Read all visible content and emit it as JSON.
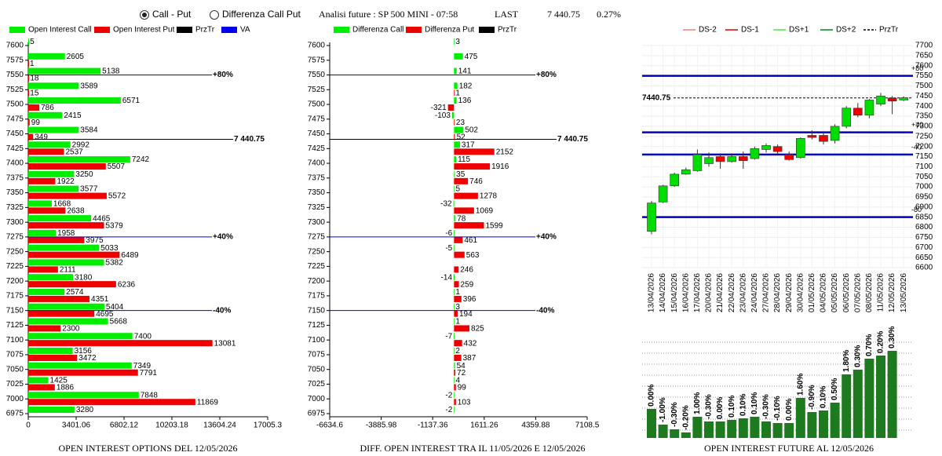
{
  "header": {
    "options": [
      "Call - Put",
      "Differenza Call Put"
    ],
    "selected": 0,
    "title": "Analisi future : SP 500 MINI - 07:58",
    "last_label": "LAST",
    "last_value": "7 440.75",
    "change": "0.27%"
  },
  "chart_data": [
    {
      "type": "hbar",
      "title": "OPEN INTEREST OPTIONS DEL 12/05/2026",
      "categories": [
        7600,
        7575,
        7550,
        7525,
        7500,
        7475,
        7450,
        7425,
        7400,
        7375,
        7350,
        7325,
        7300,
        7275,
        7250,
        7225,
        7200,
        7175,
        7150,
        7125,
        7100,
        7075,
        7050,
        7025,
        7000,
        6975
      ],
      "series": [
        {
          "name": "Open Interest Call",
          "color": "#00ee00",
          "values": [
            5,
            2605,
            5138,
            3589,
            6571,
            2415,
            3584,
            2992,
            7242,
            3250,
            3577,
            1668,
            4465,
            1958,
            5033,
            5382,
            3180,
            2574,
            5404,
            5668,
            7400,
            3156,
            7349,
            1425,
            7848,
            3280
          ]
        },
        {
          "name": "Open Interest Put",
          "color": "#ee0000",
          "values": [
            null,
            1,
            18,
            15,
            786,
            99,
            349,
            2537,
            5507,
            1922,
            5572,
            2638,
            5379,
            3975,
            6489,
            2111,
            6236,
            4351,
            4695,
            2300,
            13081,
            3472,
            7791,
            1886,
            11869,
            null
          ]
        }
      ],
      "legend_extra": [
        {
          "name": "PrzTr",
          "color": "#000000"
        },
        {
          "name": "VA",
          "color": "#0000ee"
        }
      ],
      "levels": [
        {
          "label": "+80%",
          "value": 7550,
          "color": "#0000ee"
        },
        {
          "label": "7 440.75",
          "value": 7440.75,
          "color": "#000000"
        },
        {
          "label": "+40%",
          "value": 7275,
          "color": "#0000ee"
        },
        {
          "label": "-40%",
          "value": 7150,
          "color": "#0000ee"
        }
      ],
      "xlim": [
        0,
        17005.3
      ],
      "xticks": [
        0,
        3401.06,
        6802.12,
        10203.18,
        13604.24,
        17005.3
      ]
    },
    {
      "type": "hbar",
      "title": "DIFF. OPEN INTEREST TRA IL 11/05/2026 E 12/05/2026",
      "categories": [
        7600,
        7575,
        7550,
        7525,
        7500,
        7475,
        7450,
        7425,
        7400,
        7375,
        7350,
        7325,
        7300,
        7275,
        7250,
        7225,
        7200,
        7175,
        7150,
        7125,
        7100,
        7075,
        7050,
        7025,
        7000,
        6975
      ],
      "series": [
        {
          "name": "Differenza Call",
          "color": "#00ee00",
          "values": [
            3,
            475,
            141,
            182,
            136,
            -103,
            502,
            317,
            115,
            35,
            5,
            -32,
            78,
            -6,
            -5,
            null,
            -14,
            1,
            3,
            1,
            -7,
            2,
            54,
            4,
            -2,
            -2
          ]
        },
        {
          "name": "Differenza Put",
          "color": "#ee0000",
          "values": [
            null,
            null,
            null,
            1,
            -321,
            23,
            52,
            2152,
            1916,
            746,
            1278,
            1069,
            1599,
            461,
            563,
            246,
            259,
            396,
            194,
            825,
            432,
            387,
            72,
            99,
            103,
            null
          ]
        }
      ],
      "legend_extra": [
        {
          "name": "PrzTr",
          "color": "#000000"
        }
      ],
      "levels": [
        {
          "label": "+80%",
          "value": 7550,
          "color": "#0000ee"
        },
        {
          "label": "7 440.75",
          "value": 7440.75,
          "color": "#000000"
        },
        {
          "label": "+40%",
          "value": 7275,
          "color": "#0000ee"
        },
        {
          "label": "-40%",
          "value": 7150,
          "color": "#0000ee"
        }
      ],
      "xlim": [
        -6634.6,
        7108.5
      ],
      "xticks": [
        -6634.6,
        -3885.98,
        -1137.36,
        1611.26,
        4359.88,
        7108.5
      ]
    },
    {
      "type": "candlestick",
      "title": "OPEN INTEREST FUTURE AL 12/05/2026",
      "legend": [
        {
          "name": "DS-2",
          "color": "#f08070",
          "dash": false
        },
        {
          "name": "DS-1",
          "color": "#e00000",
          "dash": false
        },
        {
          "name": "DS+1",
          "color": "#44ee44",
          "dash": false
        },
        {
          "name": "DS+2",
          "color": "#008800",
          "dash": false
        },
        {
          "name": "PrzTr",
          "color": "#000000",
          "dash": true
        }
      ],
      "categories": [
        "13/04/2026",
        "14/04/2026",
        "15/04/2026",
        "16/04/2026",
        "17/04/2026",
        "20/04/2026",
        "21/04/2026",
        "22/04/2026",
        "23/04/2026",
        "24/04/2026",
        "27/04/2026",
        "28/04/2026",
        "29/04/2026",
        "30/04/2026",
        "01/05/2026",
        "04/05/2026",
        "05/05/2026",
        "06/05/2026",
        "07/05/2026",
        "08/05/2026",
        "11/05/2026",
        "12/05/2026",
        "13/05/2026"
      ],
      "open": [
        6780,
        6925,
        7005,
        7063,
        7080,
        7115,
        7150,
        7125,
        7150,
        7140,
        7185,
        7200,
        7160,
        7145,
        7255,
        7255,
        7230,
        7300,
        7390,
        7355,
        7410,
        7440,
        7430
      ],
      "high": [
        6930,
        7010,
        7070,
        7095,
        7185,
        7170,
        7165,
        7165,
        7175,
        7200,
        7215,
        7210,
        7175,
        7245,
        7280,
        7270,
        7310,
        7400,
        7415,
        7435,
        7465,
        7450,
        7448
      ],
      "low": [
        6765,
        6920,
        7000,
        7060,
        7075,
        7100,
        7090,
        7120,
        7090,
        7135,
        7170,
        7160,
        7130,
        7140,
        7235,
        7210,
        7215,
        7290,
        7345,
        7340,
        7400,
        7360,
        7425
      ],
      "close": [
        6920,
        7005,
        7063,
        7085,
        7160,
        7145,
        7125,
        7150,
        7130,
        7190,
        7205,
        7175,
        7135,
        7240,
        7245,
        7225,
        7300,
        7390,
        7355,
        7430,
        7450,
        7425,
        7440.75
      ],
      "up_color": "#00dd00",
      "down_color": "#ee0000",
      "levels": [
        {
          "label": "+80",
          "value": 7550,
          "color": "#0000bb"
        },
        {
          "label": "+40",
          "value": 7270,
          "color": "#0000bb"
        },
        {
          "label": "-40",
          "value": 7160,
          "color": "#0000bb"
        },
        {
          "label": "-80",
          "value": 6850,
          "color": "#0000bb"
        }
      ],
      "price": 7440.75,
      "ylim": [
        6600,
        7700
      ],
      "yticks": [
        6600,
        6650,
        6700,
        6750,
        6800,
        6850,
        6900,
        6950,
        7000,
        7050,
        7100,
        7150,
        7200,
        7250,
        7300,
        7350,
        7400,
        7450,
        7500,
        7550,
        7600,
        7650,
        7700
      ]
    },
    {
      "type": "cumbar",
      "color": "#1e7a1e",
      "values": [
        0,
        -1,
        -0.3,
        -0.2,
        1,
        -0.3,
        0,
        0.1,
        0.1,
        0.1,
        -0.3,
        -0.1,
        0,
        1.6,
        -0.9,
        0.1,
        0.5,
        1.8,
        0.3,
        0.7,
        0.2,
        0.3
      ],
      "value_labels": [
        "0.00%",
        "-1.00%",
        "-0.30%",
        "-0.20%",
        "1.00%",
        "-0.30%",
        "0.00%",
        "0.10%",
        "0.10%",
        "0.10%",
        "-0.30%",
        "-0.10%",
        "0.00%",
        "1.60%",
        "-0.90%",
        "0.10%",
        "0.50%",
        "1.80%",
        "0.30%",
        "0.70%",
        "0.20%",
        "0.30%"
      ]
    }
  ]
}
